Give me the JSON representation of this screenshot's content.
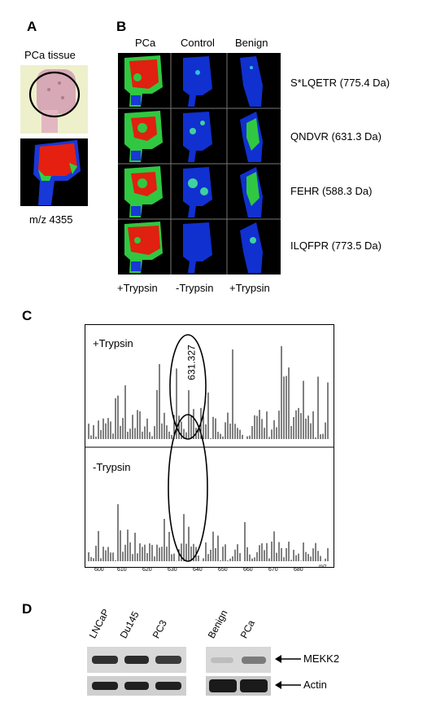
{
  "panels": {
    "a": "A",
    "b": "B",
    "c": "C",
    "d": "D"
  },
  "panel_a": {
    "title": "PCa tissue",
    "caption": "m/z 4355"
  },
  "panel_b": {
    "columns": [
      "PCa",
      "Control",
      "Benign"
    ],
    "rows": [
      "S*LQETR (775.4 Da)",
      "QNDVR (631.3 Da)",
      "FEHR (588.3 Da)",
      "ILQFPR (773.5 Da)"
    ],
    "bottom": [
      "+Trypsin",
      "-Trypsin",
      "+Trypsin"
    ]
  },
  "panel_c": {
    "top_label": "+Trypsin",
    "bottom_label": "-Trypsin",
    "peak_label": "631.327",
    "axis_unit": "m/z",
    "ticks": [
      "600",
      "610",
      "620",
      "630",
      "640",
      "650",
      "660",
      "670",
      "680"
    ]
  },
  "panel_d": {
    "left_lanes": [
      "LNCaP",
      "Du145",
      "PC3"
    ],
    "right_lanes": [
      "Benign",
      "PCa"
    ],
    "band_labels": [
      "MEKK2",
      "Actin"
    ]
  },
  "colors": {
    "high": "#e02010",
    "mid": "#30e040",
    "low": "#1030e0",
    "bg": "#000000"
  }
}
